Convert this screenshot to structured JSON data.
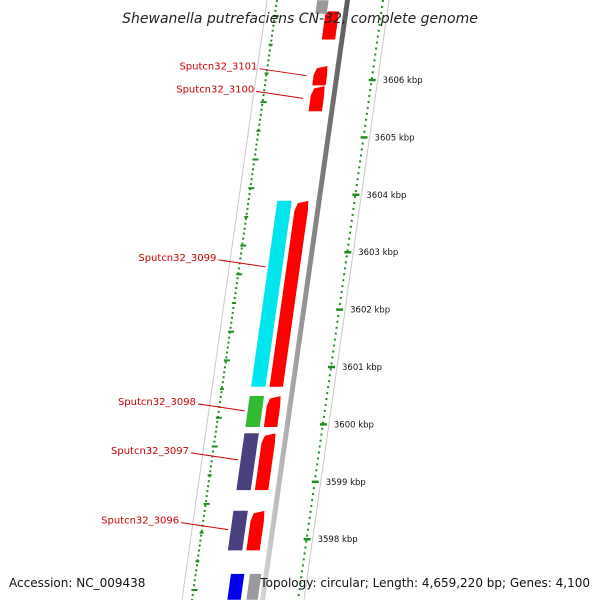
{
  "title": "Shewanella putrefaciens CN-32, complete genome",
  "footer": {
    "accession": "Accession: NC_009438",
    "summary": "Topology: circular; Length: 4,659,220 bp; Genes: 4,100"
  },
  "genes": [
    {
      "label": "Sputcn32_3101",
      "start_kbp": 3605.9,
      "end_kbp": 3606.25,
      "strand": "+",
      "color": "#ff0000"
    },
    {
      "label": "Sputcn32_3100",
      "start_kbp": 3605.45,
      "end_kbp": 3605.9,
      "strand": "+",
      "color": "#ff0000"
    },
    {
      "label": "Sputcn32_3099",
      "start_kbp": 3600.65,
      "end_kbp": 3603.9,
      "strand": "+",
      "color": "#ff0000",
      "cog_color": "#00e5ee"
    },
    {
      "label": "Sputcn32_3098",
      "start_kbp": 3599.95,
      "end_kbp": 3600.5,
      "strand": "+",
      "color": "#ff0000",
      "cog_color": "#33bb33"
    },
    {
      "label": "Sputcn32_3097",
      "start_kbp": 3598.85,
      "end_kbp": 3599.85,
      "strand": "+",
      "color": "#ff0000",
      "cog_color": "#4a3f7f"
    },
    {
      "label": "Sputcn32_3096",
      "start_kbp": 3597.8,
      "end_kbp": 3598.5,
      "strand": "+",
      "color": "#ff0000",
      "cog_color": "#4a3f7f"
    }
  ],
  "partial_features": [
    {
      "start_kbp": 3606.7,
      "end_kbp": 3607.2,
      "color": "#ff0000",
      "track": "gene"
    },
    {
      "start_kbp": 3596.9,
      "end_kbp": 3597.4,
      "color": "#0000ee",
      "track": "cog"
    }
  ],
  "ticks": [
    {
      "kbp": 3606,
      "label": "3606 kbp"
    },
    {
      "kbp": 3605,
      "label": "3605 kbp"
    },
    {
      "kbp": 3604,
      "label": "3604 kbp"
    },
    {
      "kbp": 3603,
      "label": "3603 kbp"
    },
    {
      "kbp": 3602,
      "label": "3602 kbp"
    },
    {
      "kbp": 3601,
      "label": "3601 kbp"
    },
    {
      "kbp": 3600,
      "label": "3600 kbp"
    },
    {
      "kbp": 3599,
      "label": "3599 kbp"
    },
    {
      "kbp": 3598,
      "label": "3598 kbp"
    }
  ],
  "colors": {
    "backbone": "#8c8c8c",
    "outer_ring_dots": "#1e8c1e",
    "ring_outline": "#c8c8c8",
    "gene_forward": "#ff0000",
    "label_text": "#cc0000"
  }
}
